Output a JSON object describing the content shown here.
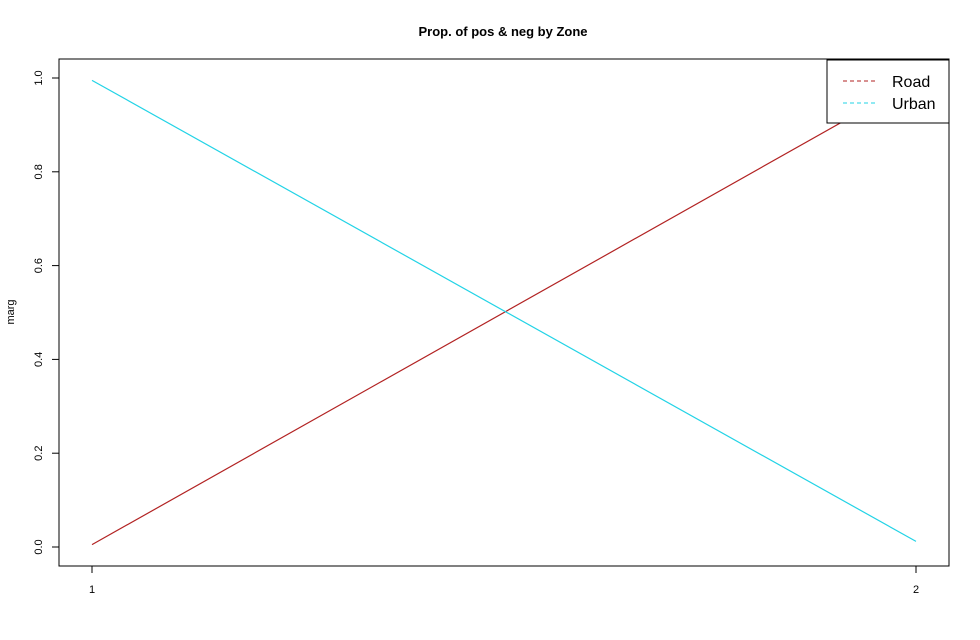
{
  "chart_data": {
    "type": "line",
    "title": "Prop. of pos & neg by Zone",
    "xlabel": "",
    "ylabel": "marg",
    "x": [
      1,
      2
    ],
    "x_ticks": [
      "1",
      "2"
    ],
    "y_ticks": [
      "0.0",
      "0.2",
      "0.4",
      "0.6",
      "0.8",
      "1.0"
    ],
    "xlim": [
      1,
      2
    ],
    "ylim": [
      0,
      1
    ],
    "grid": false,
    "legend_position": "top-right",
    "series": [
      {
        "name": "Road",
        "values": [
          0.005,
          0.995
        ],
        "color": "#b22222"
      },
      {
        "name": "Urban",
        "values": [
          0.995,
          0.012
        ],
        "color": "#22d3e6"
      }
    ]
  }
}
